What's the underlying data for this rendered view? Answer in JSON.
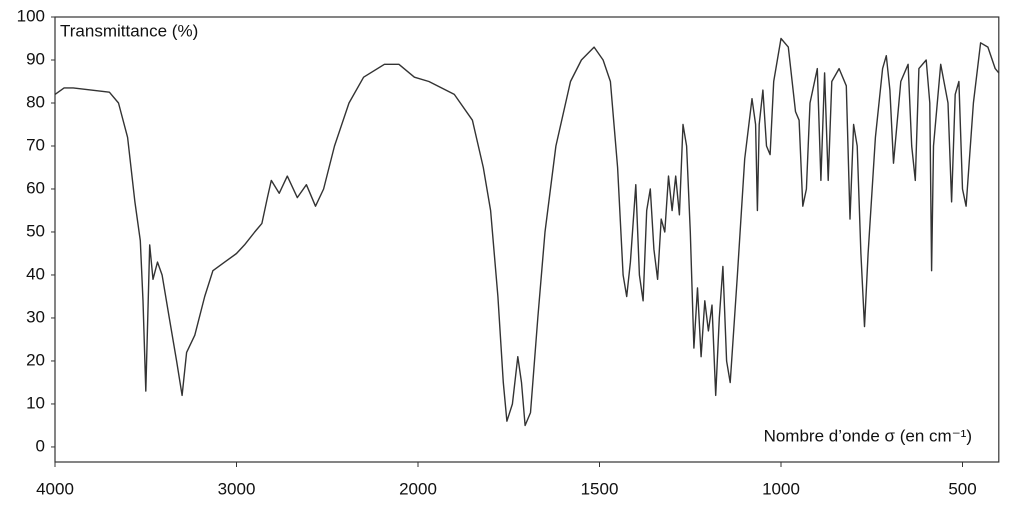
{
  "chart_data": {
    "type": "line",
    "y_label": "Transmittance (%)",
    "x_label": "Nombre d’onde σ (en cm⁻¹)",
    "xlim": [
      4000,
      400
    ],
    "xticks": [
      4000,
      3000,
      2000,
      1500,
      1000,
      500
    ],
    "ylim": [
      -3.5,
      100
    ],
    "yticks": [
      0,
      10,
      20,
      30,
      40,
      50,
      60,
      70,
      80,
      90,
      100
    ],
    "grid": false,
    "series": [
      {
        "color": "#333333",
        "x": [
          4000,
          3950,
          3900,
          3800,
          3700,
          3650,
          3600,
          3560,
          3530,
          3515,
          3500,
          3478,
          3460,
          3435,
          3410,
          3370,
          3330,
          3300,
          3275,
          3230,
          3175,
          3130,
          3065,
          3000,
          2956,
          2900,
          2860,
          2830,
          2808,
          2765,
          2720,
          2665,
          2615,
          2565,
          2520,
          2460,
          2380,
          2300,
          2185,
          2105,
          2020,
          1970,
          1900,
          1850,
          1820,
          1800,
          1780,
          1765,
          1755,
          1740,
          1725,
          1715,
          1705,
          1690,
          1670,
          1650,
          1620,
          1580,
          1550,
          1515,
          1490,
          1470,
          1450,
          1435,
          1425,
          1415,
          1400,
          1390,
          1380,
          1370,
          1360,
          1350,
          1340,
          1330,
          1320,
          1310,
          1300,
          1290,
          1280,
          1270,
          1260,
          1250,
          1240,
          1230,
          1220,
          1210,
          1200,
          1190,
          1180,
          1170,
          1160,
          1150,
          1140,
          1120,
          1100,
          1080,
          1070,
          1065,
          1060,
          1050,
          1040,
          1030,
          1020,
          1000,
          980,
          960,
          950,
          940,
          930,
          920,
          900,
          890,
          880,
          870,
          860,
          840,
          820,
          810,
          800,
          790,
          780,
          770,
          760,
          740,
          720,
          710,
          700,
          690,
          670,
          650,
          640,
          630,
          620,
          600,
          590,
          585,
          580,
          560,
          540,
          530,
          520,
          510,
          500,
          490,
          470,
          450,
          430,
          410,
          400
        ],
        "values": [
          82,
          83.5,
          83.5,
          83,
          82.5,
          80,
          72,
          57,
          48,
          34,
          13,
          47,
          39,
          43,
          40,
          30,
          20,
          12,
          22,
          26,
          35,
          41,
          43,
          45,
          47,
          50,
          52,
          58,
          62,
          59,
          63,
          58,
          61,
          56,
          60,
          70,
          80,
          86,
          89,
          89,
          86,
          85,
          82,
          76,
          65,
          55,
          35,
          15,
          6,
          10,
          21,
          15,
          5,
          8,
          30,
          50,
          70,
          85,
          90,
          93,
          90,
          85,
          65,
          40,
          35,
          43,
          61,
          40,
          34,
          55,
          60,
          46,
          39,
          53,
          50,
          63,
          55,
          63,
          54,
          75,
          70,
          50,
          23,
          37,
          21,
          34,
          27,
          33,
          12,
          30,
          42,
          20,
          15,
          40,
          67,
          81,
          75,
          55,
          75,
          83,
          70,
          68,
          85,
          95,
          93,
          78,
          76,
          56,
          60,
          80,
          88,
          62,
          87,
          62,
          85,
          88,
          84,
          53,
          75,
          70,
          45,
          28,
          45,
          72,
          88,
          91,
          83,
          66,
          85,
          89,
          70,
          62,
          88,
          90,
          80,
          41,
          70,
          89,
          80,
          57,
          82,
          85,
          60,
          56,
          80,
          94,
          93,
          88,
          87
        ]
      }
    ]
  }
}
